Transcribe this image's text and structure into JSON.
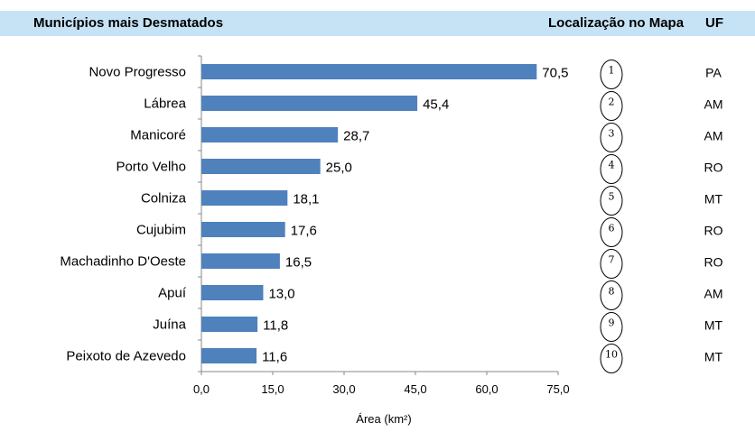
{
  "header": {
    "title": "Municípios mais Desmatados",
    "location_label": "Localização no Mapa",
    "uf_label": "UF"
  },
  "chart_data": {
    "type": "bar",
    "orientation": "horizontal",
    "categories": [
      "Novo Progresso",
      "Lábrea",
      "Manicoré",
      "Porto Velho",
      "Colniza",
      "Cujubim",
      "Machadinho D'Oeste",
      "Apuí",
      "Juína",
      "Peixoto de Azevedo"
    ],
    "values": [
      70.5,
      45.4,
      28.7,
      25.0,
      18.1,
      17.6,
      16.5,
      13.0,
      11.8,
      11.6
    ],
    "value_labels": [
      "70,5",
      "45,4",
      "28,7",
      "25,0",
      "18,1",
      "17,6",
      "16,5",
      "13,0",
      "11,8",
      "11,6"
    ],
    "xlim": [
      0,
      75
    ],
    "xticks": [
      "0,0",
      "15,0",
      "30,0",
      "45,0",
      "60,0",
      "75,0"
    ],
    "xlabel": "Área (km²)",
    "bar_color": "#4f81bd",
    "grid": false
  },
  "map_refs": {
    "numbers": [
      "1",
      "2",
      "3",
      "4",
      "5",
      "6",
      "7",
      "8",
      "9",
      "10"
    ],
    "ufs": [
      "PA",
      "AM",
      "AM",
      "RO",
      "MT",
      "RO",
      "RO",
      "AM",
      "MT",
      "MT"
    ]
  }
}
